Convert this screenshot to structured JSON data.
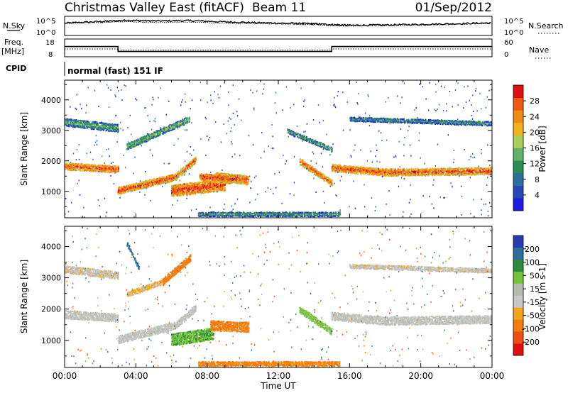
{
  "header": {
    "station": "Christmas Valley East (fitACF)",
    "beam": "Beam 11",
    "date": "01/Sep/2012"
  },
  "labels": {
    "nsky": "N.Sky",
    "nsearch": "N.Search",
    "freq_line1": "Freq.",
    "freq_line2": "[MHz]",
    "nave": "Nave",
    "cpid": "CPID",
    "mode": "normal (fast) 151 IF"
  },
  "noise_axis": {
    "left_ticks": [
      "10^5",
      "10^0"
    ],
    "right_ticks": [
      "10^5",
      "10^0"
    ]
  },
  "freq_axis": {
    "left_ticks": [
      "18",
      "8"
    ],
    "right_ticks": [
      "60",
      "0"
    ]
  },
  "colors": {
    "power_scale": [
      "#1d1de6",
      "#2748b8",
      "#2f6f9e",
      "#2d8c52",
      "#62b36a",
      "#a8d05a",
      "#f2b21a",
      "#f08c15",
      "#f05a10",
      "#e01010"
    ],
    "velocity_scale": [
      "#2a3ab0",
      "#2d6e9e",
      "#2d8c3c",
      "#74c43a",
      "#b8bcb0",
      "#c8c8c8",
      "#f2a51c",
      "#f07d12",
      "#ea4e10",
      "#e01010"
    ]
  },
  "chart_data": [
    {
      "type": "line",
      "panel": "noise",
      "series": [
        {
          "name": "N.Sky",
          "x": [
            0,
            2,
            3.5,
            5,
            7,
            9,
            11,
            13,
            14,
            15,
            16,
            18,
            20,
            22,
            24
          ],
          "y": [
            3.5,
            4.0,
            4.4,
            4.2,
            4.3,
            3.9,
            3.6,
            3.4,
            3.3,
            3.0,
            2.8,
            2.9,
            3.1,
            3.3,
            3.6
          ]
        },
        {
          "name": "N.Search",
          "x": [
            0,
            2,
            3.5,
            5,
            7,
            9,
            11,
            13,
            14,
            15,
            16,
            18,
            20,
            22,
            24
          ],
          "y": [
            3.4,
            3.7,
            4.0,
            3.7,
            3.8,
            3.5,
            3.3,
            3.1,
            3.0,
            2.7,
            2.6,
            2.7,
            2.9,
            3.1,
            3.4
          ]
        }
      ],
      "xlim": [
        0,
        24
      ]
    },
    {
      "type": "line",
      "panel": "frequency",
      "series": [
        {
          "name": "Freq.",
          "x": [
            0,
            3,
            3,
            15,
            15,
            24
          ],
          "y": [
            14.2,
            14.2,
            10.7,
            10.7,
            14.2,
            14.2
          ]
        },
        {
          "name": "Nave",
          "x": [
            0,
            3,
            3,
            15,
            15,
            24
          ],
          "y": [
            27,
            27,
            22,
            22,
            27,
            27
          ]
        }
      ],
      "xlim": [
        0,
        24
      ]
    },
    {
      "type": "heatmap",
      "panel": "power",
      "quantity": "Power",
      "unit": "dB",
      "colorbar_label": "Power [dB]",
      "colorbar_ticks": [
        4,
        8,
        12,
        16,
        20,
        24,
        28
      ],
      "ylabel": "Slant Range [km]",
      "yticks": [
        1000,
        2000,
        3000,
        4000
      ],
      "ylim": [
        180,
        4600
      ],
      "xlim": [
        0,
        24
      ],
      "echo_bands": [
        {
          "t0": 0,
          "t1": 3,
          "r0": 1850,
          "r1": 1750,
          "w": 230,
          "level": 0.9
        },
        {
          "t0": 3,
          "t1": 6.2,
          "r0": 1050,
          "r1": 1500,
          "w": 230,
          "level": 0.9
        },
        {
          "t0": 6.2,
          "t1": 7.4,
          "r0": 1500,
          "r1": 2100,
          "w": 220,
          "level": 0.8
        },
        {
          "t0": 6.0,
          "t1": 9.0,
          "r0": 1050,
          "r1": 1250,
          "w": 380,
          "level": 0.95
        },
        {
          "t0": 7.6,
          "t1": 9.3,
          "r0": 1500,
          "r1": 1400,
          "w": 250,
          "level": 0.95
        },
        {
          "t0": 8.5,
          "t1": 10.3,
          "r0": 1500,
          "r1": 1400,
          "w": 300,
          "level": 0.9
        },
        {
          "t0": 13.2,
          "t1": 15,
          "r0": 2000,
          "r1": 1300,
          "w": 200,
          "level": 0.85
        },
        {
          "t0": 15,
          "t1": 18,
          "r0": 1800,
          "r1": 1650,
          "w": 240,
          "level": 0.9
        },
        {
          "t0": 18,
          "t1": 24,
          "r0": 1650,
          "r1": 1700,
          "w": 240,
          "level": 0.9
        },
        {
          "t0": 0,
          "t1": 3,
          "r0": 3300,
          "r1": 3100,
          "w": 260,
          "level": 0.2
        },
        {
          "t0": 3.5,
          "t1": 7.0,
          "r0": 2500,
          "r1": 3400,
          "w": 200,
          "level": 0.3
        },
        {
          "t0": 12.5,
          "t1": 15,
          "r0": 3000,
          "r1": 2400,
          "w": 150,
          "level": 0.2
        },
        {
          "t0": 16,
          "t1": 24,
          "r0": 3400,
          "r1": 3250,
          "w": 140,
          "level": 0.1
        },
        {
          "t0": 7.5,
          "t1": 15.5,
          "r0": 280,
          "r1": 280,
          "w": 140,
          "level": 0.15
        }
      ]
    },
    {
      "type": "heatmap",
      "panel": "velocity",
      "quantity": "Velocity",
      "unit": "m s^-1",
      "colorbar_label": "Velocity [m s-1]",
      "colorbar_ticks": [
        200,
        100,
        50,
        15,
        -15,
        -50,
        -100,
        -200
      ],
      "ylabel": "Slant Range [km]",
      "yticks": [
        1000,
        2000,
        3000,
        4000
      ],
      "ylim": [
        180,
        4600
      ],
      "xlim": [
        0,
        24
      ],
      "echo_bands": [
        {
          "t0": 0,
          "t1": 3,
          "r0": 1850,
          "r1": 1750,
          "w": 260,
          "vel": 0
        },
        {
          "t0": 3,
          "t1": 6.2,
          "r0": 1050,
          "r1": 1500,
          "w": 250,
          "vel": 0
        },
        {
          "t0": 6.2,
          "t1": 7.4,
          "r0": 1500,
          "r1": 2100,
          "w": 220,
          "vel": 0
        },
        {
          "t0": 6.0,
          "t1": 8.4,
          "r0": 1050,
          "r1": 1250,
          "w": 380,
          "vel": 45
        },
        {
          "t0": 8.2,
          "t1": 10.3,
          "r0": 1500,
          "r1": 1450,
          "w": 320,
          "vel": -60
        },
        {
          "t0": 13.2,
          "t1": 15,
          "r0": 2000,
          "r1": 1300,
          "w": 200,
          "vel": 25
        },
        {
          "t0": 15,
          "t1": 18,
          "r0": 1800,
          "r1": 1650,
          "w": 260,
          "vel": 0
        },
        {
          "t0": 18,
          "t1": 24,
          "r0": 1650,
          "r1": 1700,
          "w": 260,
          "vel": 0
        },
        {
          "t0": 0,
          "t1": 3,
          "r0": 3300,
          "r1": 3100,
          "w": 240,
          "vel": -5
        },
        {
          "t0": 5.5,
          "t1": 7.1,
          "r0": 2900,
          "r1": 3700,
          "w": 220,
          "vel": -70
        },
        {
          "t0": 3.5,
          "t1": 5.5,
          "r0": 2500,
          "r1": 2900,
          "w": 160,
          "vel": -20
        },
        {
          "t0": 3.5,
          "t1": 4.2,
          "r0": 4100,
          "r1": 3300,
          "w": 120,
          "vel": 150
        },
        {
          "t0": 16,
          "t1": 24,
          "r0": 3400,
          "r1": 3250,
          "w": 140,
          "vel": -5
        },
        {
          "t0": 7.5,
          "t1": 15.5,
          "r0": 280,
          "r1": 280,
          "w": 150,
          "vel": -60
        }
      ]
    }
  ],
  "time_axis": {
    "label": "Time UT",
    "ticks": [
      "00:00",
      "04:00",
      "08:00",
      "12:00",
      "16:00",
      "20:00",
      "00:00"
    ]
  }
}
